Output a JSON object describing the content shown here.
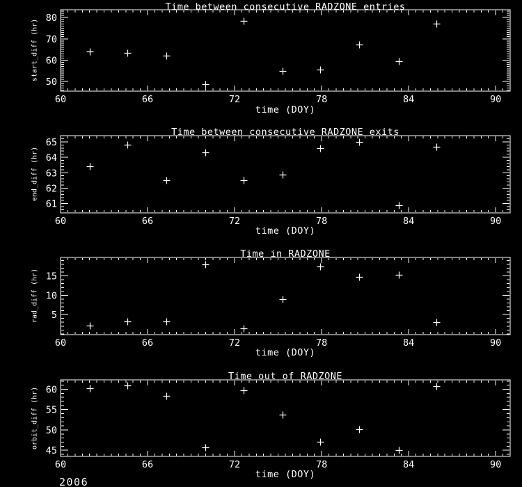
{
  "page": {
    "background": "#000000",
    "foreground": "#ffffff",
    "year_label": "2006"
  },
  "chart_data": [
    {
      "type": "scatter",
      "title": "Time between consecutive RADZONE entries",
      "xlabel": "time (DOY)",
      "ylabel": "start_diff (hr)",
      "marker": "plus",
      "marker_color": "#ffffff",
      "grid": false,
      "x": [
        62.0,
        64.6,
        67.3,
        70.0,
        72.6,
        75.3,
        77.9,
        80.6,
        83.3,
        85.9
      ],
      "y": [
        64.0,
        63.4,
        62.2,
        48.8,
        78.4,
        55.0,
        55.7,
        67.3,
        59.6,
        77.2
      ],
      "xlim": [
        60,
        91
      ],
      "ylim": [
        45.5,
        83.6
      ],
      "xticks": [
        60,
        66,
        72,
        78,
        84,
        90
      ],
      "yticks": [
        50,
        60,
        70,
        80
      ],
      "x_minor_step": 0.5,
      "y_minor_step": 1
    },
    {
      "type": "scatter",
      "title": "Time between consecutive RADZONE exits",
      "xlabel": "time (DOY)",
      "ylabel": "end_diff (hr)",
      "marker": "plus",
      "marker_color": "#ffffff",
      "grid": false,
      "x": [
        62.0,
        64.6,
        67.3,
        70.0,
        72.6,
        75.3,
        77.9,
        80.6,
        83.3,
        85.9
      ],
      "y": [
        63.4,
        64.8,
        62.5,
        64.3,
        62.5,
        62.9,
        64.6,
        65.0,
        60.9,
        64.7
      ],
      "xlim": [
        60,
        91
      ],
      "ylim": [
        60.4,
        65.4
      ],
      "xticks": [
        60,
        66,
        72,
        78,
        84,
        90
      ],
      "yticks": [
        61,
        62,
        63,
        64,
        65
      ],
      "x_minor_step": 0.5,
      "y_minor_step": 0.2
    },
    {
      "type": "scatter",
      "title": "Time in RADZONE",
      "xlabel": "time (DOY)",
      "ylabel": "rad_diff (hr)",
      "marker": "plus",
      "marker_color": "#ffffff",
      "grid": false,
      "x": [
        62.0,
        64.6,
        67.3,
        70.0,
        72.6,
        75.3,
        77.9,
        80.6,
        83.3,
        85.9
      ],
      "y": [
        2.1,
        3.2,
        3.2,
        18.0,
        1.4,
        9.0,
        17.4,
        14.8,
        15.3,
        3.1
      ],
      "xlim": [
        60,
        91
      ],
      "ylim": [
        -0.2,
        19.8
      ],
      "xticks": [
        60,
        66,
        72,
        78,
        84,
        90
      ],
      "yticks": [
        5,
        10,
        15
      ],
      "x_minor_step": 0.5,
      "y_minor_step": 1
    },
    {
      "type": "scatter",
      "title": "Time out of RADZONE",
      "xlabel": "time (DOY)",
      "ylabel": "orbit_diff (hr)",
      "marker": "plus",
      "marker_color": "#ffffff",
      "grid": false,
      "x": [
        62.0,
        64.6,
        67.3,
        70.0,
        72.6,
        75.3,
        77.9,
        80.6,
        83.3,
        85.9
      ],
      "y": [
        60.3,
        60.9,
        58.4,
        45.7,
        59.8,
        53.8,
        47.1,
        50.2,
        45.1,
        60.8
      ],
      "xlim": [
        60,
        91
      ],
      "ylim": [
        43.5,
        62.3
      ],
      "xticks": [
        60,
        66,
        72,
        78,
        84,
        90
      ],
      "yticks": [
        45,
        50,
        55,
        60
      ],
      "x_minor_step": 0.5,
      "y_minor_step": 1
    }
  ]
}
